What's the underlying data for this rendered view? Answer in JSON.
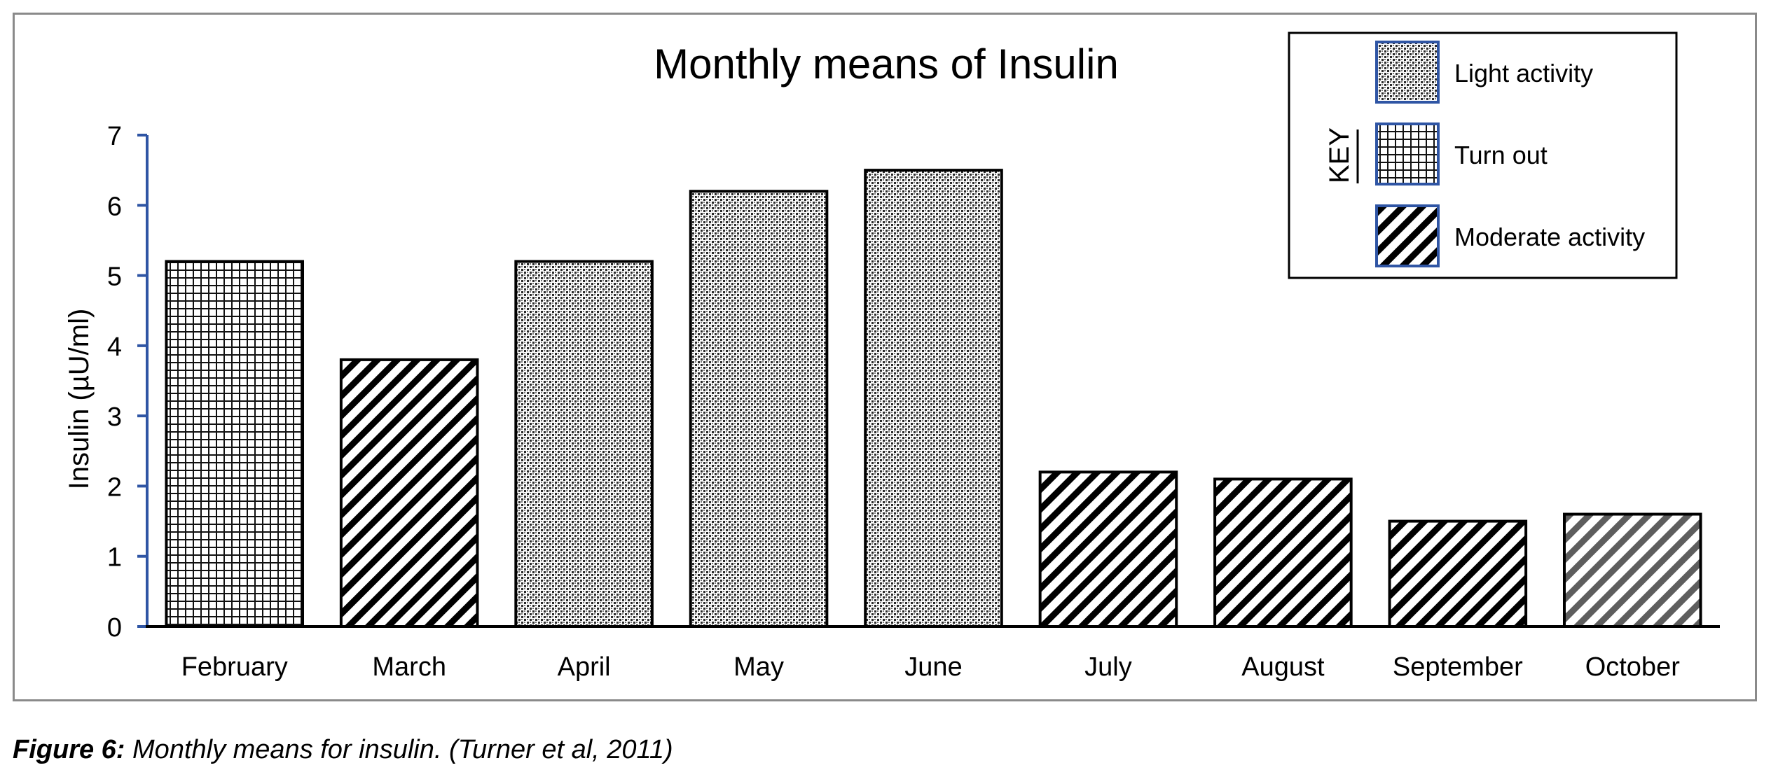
{
  "chart_data": {
    "type": "bar",
    "title": "Monthly means of Insulin",
    "ylabel": "Insulin (µU/ml)",
    "xlabel": "",
    "ylim": [
      0,
      7
    ],
    "yticks": [
      "0",
      "1",
      "2",
      "3",
      "4",
      "5",
      "6",
      "7"
    ],
    "grid": false,
    "legend_position": "top-right",
    "categories": [
      "February",
      "March",
      "April",
      "May",
      "June",
      "July",
      "August",
      "September",
      "October"
    ],
    "values": [
      5.2,
      3.8,
      5.2,
      6.2,
      6.5,
      2.2,
      2.1,
      1.5,
      1.6
    ],
    "bar_patterns": [
      "turnout",
      "moderate",
      "light",
      "light",
      "light",
      "moderate",
      "moderate",
      "moderate",
      "moderate-gray"
    ],
    "legend": {
      "heading": "KEY",
      "entries": [
        {
          "label": "Light activity",
          "pattern": "light"
        },
        {
          "label": "Turn out",
          "pattern": "turnout"
        },
        {
          "label": "Moderate activity",
          "pattern": "moderate"
        }
      ]
    },
    "colors": {
      "axis": "#2f55a4",
      "bar_border": "#000000",
      "legend_swatch_border": "#2f55a4",
      "frame": "#8a8a8a"
    }
  },
  "caption": {
    "label": "Figure 6:",
    "text": " Monthly means for insulin. (Turner et al, 2011)"
  }
}
